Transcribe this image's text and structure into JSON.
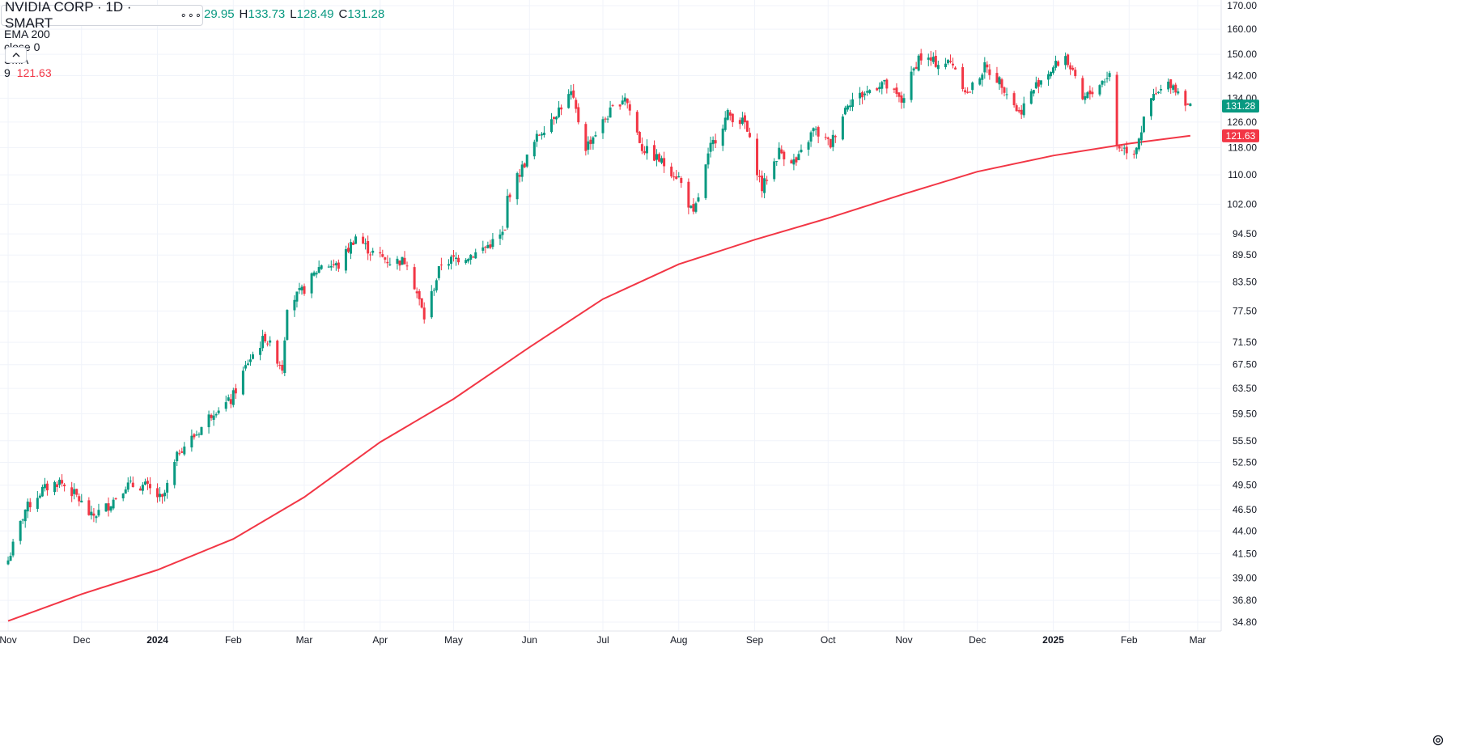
{
  "legend": {
    "symbol": "NVIDIA CORP · 1D · SMART",
    "more_dots": "∘∘∘",
    "ohlc_text": "29.95",
    "high_label": "H",
    "high": "133.73",
    "low_label": "L",
    "low": "128.49",
    "close_label": "C",
    "close": "131.28",
    "study_label": "EMA 200 close 0 SMA 9",
    "study_value": "121.63"
  },
  "colors": {
    "up": "#089981",
    "down": "#f23645",
    "ema": "#f23645",
    "grid": "#f0f3fa",
    "axis_text": "#131722",
    "last_price_bg": "#089981",
    "ema_tag_bg": "#f23645"
  },
  "chart_data": {
    "type": "candlestick",
    "title": "NVIDIA CORP · 1D · SMART",
    "y_scale": "log",
    "ylim": [
      34.0,
      170.0
    ],
    "y_ticks": [
      "170.00",
      "160.00",
      "150.00",
      "142.00",
      "134.00",
      "126.00",
      "118.00",
      "110.00",
      "102.00",
      "94.50",
      "89.50",
      "83.50",
      "77.50",
      "71.50",
      "67.50",
      "63.50",
      "59.50",
      "55.50",
      "52.50",
      "49.50",
      "46.50",
      "44.00",
      "41.50",
      "39.00",
      "36.80",
      "34.80"
    ],
    "x_ticks": [
      "Nov",
      "Dec",
      "2024",
      "Feb",
      "Mar",
      "Apr",
      "May",
      "Jun",
      "Jul",
      "Aug",
      "Sep",
      "Oct",
      "Nov",
      "Dec",
      "2025",
      "Feb",
      "Mar"
    ],
    "last_price_label": "131.28",
    "ema_label": "121.63",
    "grid": true,
    "series": [
      {
        "name": "NVIDIA CORP",
        "kind": "close_path",
        "points": [
          [
            "2023-11-01",
            40.8
          ],
          [
            "2023-11-08",
            46.5
          ],
          [
            "2023-11-15",
            48.9
          ],
          [
            "2023-11-22",
            50.0
          ],
          [
            "2023-11-29",
            48.1
          ],
          [
            "2023-12-05",
            45.6
          ],
          [
            "2023-12-12",
            47.0
          ],
          [
            "2023-12-19",
            49.5
          ],
          [
            "2023-12-27",
            49.4
          ],
          [
            "2024-01-03",
            47.6
          ],
          [
            "2024-01-10",
            54.2
          ],
          [
            "2024-01-17",
            56.5
          ],
          [
            "2024-01-24",
            60.0
          ],
          [
            "2024-01-31",
            61.5
          ],
          [
            "2024-02-07",
            68.0
          ],
          [
            "2024-02-14",
            72.5
          ],
          [
            "2024-02-21",
            67.0
          ],
          [
            "2024-02-23",
            78.8
          ],
          [
            "2024-03-01",
            82.0
          ],
          [
            "2024-03-08",
            87.5
          ],
          [
            "2024-03-15",
            87.0
          ],
          [
            "2024-03-22",
            94.0
          ],
          [
            "2024-03-28",
            90.3
          ],
          [
            "2024-04-05",
            88.0
          ],
          [
            "2024-04-12",
            88.2
          ],
          [
            "2024-04-19",
            76.2
          ],
          [
            "2024-04-26",
            87.7
          ],
          [
            "2024-05-03",
            88.8
          ],
          [
            "2024-05-10",
            89.9
          ],
          [
            "2024-05-17",
            92.5
          ],
          [
            "2024-05-22",
            94.9
          ],
          [
            "2024-05-23",
            103.8
          ],
          [
            "2024-06-05",
            122.4
          ],
          [
            "2024-06-18",
            135.5
          ],
          [
            "2024-06-24",
            118.1
          ],
          [
            "2024-07-03",
            128.3
          ],
          [
            "2024-07-10",
            134.9
          ],
          [
            "2024-07-17",
            117.9
          ],
          [
            "2024-07-24",
            114.3
          ],
          [
            "2024-08-01",
            109.2
          ],
          [
            "2024-08-07",
            98.9
          ],
          [
            "2024-08-14",
            118.0
          ],
          [
            "2024-08-21",
            128.5
          ],
          [
            "2024-08-28",
            125.6
          ],
          [
            "2024-09-04",
            106.2
          ],
          [
            "2024-09-11",
            116.9
          ],
          [
            "2024-09-18",
            113.4
          ],
          [
            "2024-09-25",
            123.5
          ],
          [
            "2024-10-02",
            118.9
          ],
          [
            "2024-10-09",
            132.7
          ],
          [
            "2024-10-16",
            135.7
          ],
          [
            "2024-10-23",
            139.6
          ],
          [
            "2024-10-31",
            132.8
          ],
          [
            "2024-11-07",
            148.9
          ],
          [
            "2024-11-14",
            146.8
          ],
          [
            "2024-11-21",
            146.7
          ],
          [
            "2024-11-27",
            135.3
          ],
          [
            "2024-12-04",
            145.1
          ],
          [
            "2024-12-11",
            139.3
          ],
          [
            "2024-12-18",
            128.9
          ],
          [
            "2024-12-26",
            139.9
          ],
          [
            "2025-01-06",
            149.4
          ],
          [
            "2025-01-13",
            133.2
          ],
          [
            "2025-01-24",
            142.6
          ],
          [
            "2025-01-27",
            118.4
          ],
          [
            "2025-02-03",
            116.7
          ],
          [
            "2025-02-10",
            133.6
          ],
          [
            "2025-02-18",
            139.4
          ],
          [
            "2025-02-26",
            131.3
          ]
        ]
      },
      {
        "name": "EMA 200 close 0 SMA 9",
        "kind": "line",
        "points": [
          [
            "2023-11-01",
            34.9
          ],
          [
            "2023-12-01",
            37.4
          ],
          [
            "2024-01-01",
            39.8
          ],
          [
            "2024-02-01",
            43.1
          ],
          [
            "2024-03-01",
            48.0
          ],
          [
            "2024-04-01",
            55.3
          ],
          [
            "2024-05-01",
            61.8
          ],
          [
            "2024-06-01",
            70.6
          ],
          [
            "2024-07-01",
            79.9
          ],
          [
            "2024-08-01",
            87.4
          ],
          [
            "2024-09-01",
            93.1
          ],
          [
            "2024-10-01",
            98.4
          ],
          [
            "2024-11-01",
            104.7
          ],
          [
            "2024-12-01",
            110.9
          ],
          [
            "2025-01-01",
            115.6
          ],
          [
            "2025-02-01",
            119.2
          ],
          [
            "2025-02-26",
            121.63
          ]
        ]
      }
    ]
  }
}
